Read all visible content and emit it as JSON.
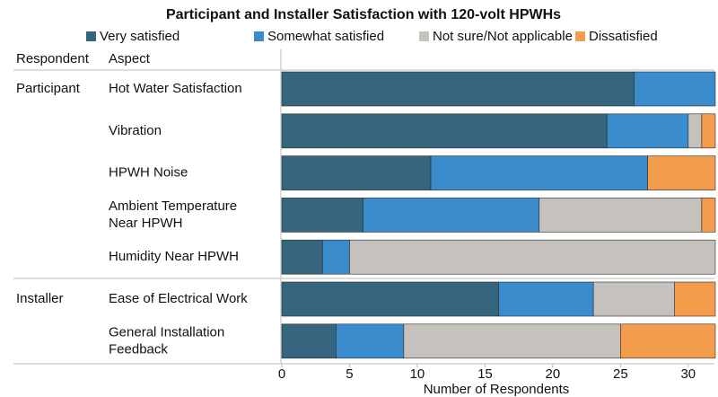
{
  "chart_data": {
    "type": "stacked-barh",
    "title": "Participant and Installer Satisfaction with 120-volt HPWHs",
    "column_headers": [
      "Respondent",
      "Aspect"
    ],
    "respondents": [
      "Participant",
      null,
      null,
      null,
      null,
      "Installer",
      null
    ],
    "categories": [
      [
        "Hot Water Satisfaction"
      ],
      [
        "Vibration"
      ],
      [
        "HPWH Noise"
      ],
      [
        "Ambient Temperature",
        "Near HPWH"
      ],
      [
        "Humidity Near HPWH"
      ],
      [
        "Ease of Electrical Work"
      ],
      [
        "General Installation",
        "Feedback"
      ]
    ],
    "series": [
      {
        "name": "Very satisfied",
        "color": "#35657f",
        "values": [
          26,
          24,
          11,
          6,
          3,
          16,
          4
        ]
      },
      {
        "name": "Somewhat satisfied",
        "color": "#3a8ccc",
        "values": [
          6,
          6,
          16,
          13,
          2,
          7,
          5
        ]
      },
      {
        "name": "Not sure/Not applicable",
        "color": "#c5c1bc",
        "values": [
          0,
          1,
          0,
          12,
          27,
          6,
          16
        ]
      },
      {
        "name": "Dissatisfied",
        "color": "#f29c4c",
        "values": [
          0,
          1,
          5,
          1,
          0,
          3,
          7
        ]
      }
    ],
    "xlabel": "Number of Respondents",
    "xlim": [
      0,
      32
    ],
    "xticks": [
      0,
      5,
      10,
      15,
      20,
      25,
      30
    ]
  }
}
